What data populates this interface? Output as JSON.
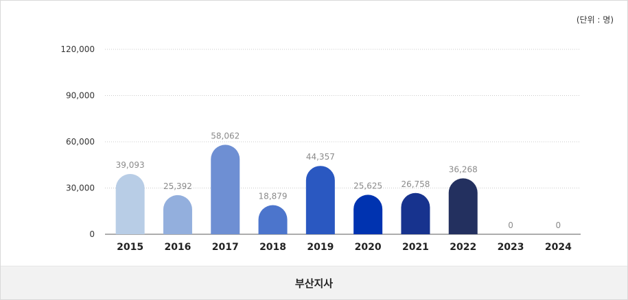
{
  "unit_label": "(단위 : 명)",
  "footer_label": "부산지사",
  "chart_data": {
    "type": "bar",
    "categories": [
      "2015",
      "2016",
      "2017",
      "2018",
      "2019",
      "2020",
      "2021",
      "2022",
      "2023",
      "2024"
    ],
    "values": [
      39093,
      25392,
      58062,
      18879,
      44357,
      25625,
      26758,
      36268,
      0,
      0
    ],
    "value_labels": [
      "39,093",
      "25,392",
      "58,062",
      "18,879",
      "44,357",
      "25,625",
      "26,758",
      "36,268",
      "0",
      "0"
    ],
    "yticks": [
      0,
      30000,
      60000,
      90000,
      120000
    ],
    "ytick_labels": [
      "0",
      "30,000",
      "60,000",
      "90,000",
      "120,000"
    ],
    "ylim": [
      0,
      120000
    ],
    "grid": true,
    "bar_colors": [
      "#b8cde6",
      "#93afdd",
      "#6e8fd3",
      "#4c75cc",
      "#2a58c1",
      "#0033b0",
      "#17338e",
      "#23305f",
      "#23305f",
      "#23305f"
    ]
  }
}
